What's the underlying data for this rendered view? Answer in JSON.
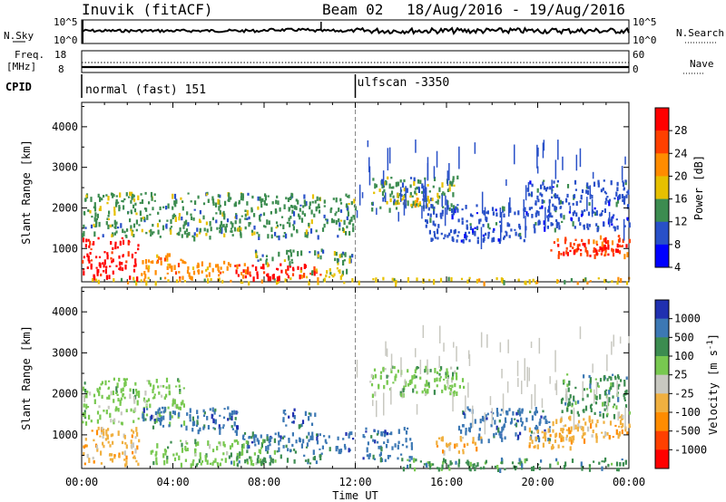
{
  "header": {
    "title": "Inuvik (fitACF)",
    "beam": "Beam 02",
    "date_range": "18/Aug/2016 - 19/Aug/2016"
  },
  "aux_panels": {
    "nsky_label": "N.Sky",
    "nsky_ticks": [
      "10^5",
      "10^0"
    ],
    "nsearch_label": "N.Search",
    "nsearch_ticks": [
      "10^5",
      "10^0"
    ],
    "freq_label": "Freq.",
    "freq_unit": "[MHz]",
    "freq_ticks": [
      "18",
      "8"
    ],
    "nave_label": "Nave",
    "nave_ticks": [
      "60",
      "0"
    ],
    "cpid_label": "CPID",
    "cpid_segments": [
      {
        "label": "normal (fast) 151",
        "start_hour": 0
      },
      {
        "label": "ulfscan -3350",
        "start_hour": 12
      }
    ]
  },
  "chart_data": [
    {
      "type": "heatmap",
      "panel": "power",
      "ylabel": "Slant Range [km]",
      "y_ticks": [
        1000,
        2000,
        3000,
        4000
      ],
      "ylim": [
        180,
        4600
      ],
      "xlim": [
        0,
        24
      ],
      "x_ticks": [
        "00:00",
        "04:00",
        "08:00",
        "12:00",
        "16:00",
        "20:00",
        "00:00"
      ],
      "colorbar_label": "Power [dB]",
      "colorbar_ticks": [
        "28",
        "24",
        "20",
        "16",
        "12",
        "8",
        "4"
      ],
      "colorbar_colors": [
        "#ff0000",
        "#ff4000",
        "#ff8c00",
        "#e6c000",
        "#3c8c50",
        "#2850c8",
        "#0000ff"
      ],
      "regions": [
        {
          "t0": 0,
          "t1": 24,
          "r0": 180,
          "r1": 300,
          "level": 4
        },
        {
          "t0": 0,
          "t1": 2.5,
          "r0": 300,
          "r1": 1300,
          "level": 1
        },
        {
          "t0": 0,
          "t1": 12,
          "r0": 1300,
          "r1": 2400,
          "level": 5
        },
        {
          "t0": 2.5,
          "t1": 4.5,
          "r0": 300,
          "r1": 900,
          "level": 3
        },
        {
          "t0": 4.5,
          "t1": 7.2,
          "r0": 300,
          "r1": 700,
          "level": 3
        },
        {
          "t0": 6.5,
          "t1": 10.5,
          "r0": 300,
          "r1": 650,
          "level": 1
        },
        {
          "t0": 7.5,
          "t1": 12,
          "r0": 650,
          "r1": 1000,
          "level": 5
        },
        {
          "t0": 9.5,
          "t1": 12,
          "r0": 300,
          "r1": 550,
          "level": 4
        },
        {
          "t0": 12.6,
          "t1": 16.5,
          "r0": 2000,
          "r1": 2800,
          "level": 5
        },
        {
          "t0": 13.5,
          "t1": 15.8,
          "r0": 2100,
          "r1": 2400,
          "level": 4
        },
        {
          "t0": 15,
          "t1": 19.5,
          "r0": 1200,
          "r1": 2100,
          "level": 6
        },
        {
          "t0": 19.5,
          "t1": 24,
          "r0": 1500,
          "r1": 2700,
          "level": 6
        },
        {
          "t0": 20.5,
          "t1": 24,
          "r0": 850,
          "r1": 1350,
          "level": 2
        },
        {
          "t0": 21.5,
          "t1": 24,
          "r0": 950,
          "r1": 1150,
          "level": 1
        }
      ]
    },
    {
      "type": "heatmap",
      "panel": "velocity",
      "ylabel": "Slant Range [km]",
      "y_ticks": [
        1000,
        2000,
        3000,
        4000
      ],
      "ylim": [
        180,
        4600
      ],
      "xlim": [
        0,
        24
      ],
      "x_ticks": [
        "00:00",
        "04:00",
        "08:00",
        "12:00",
        "16:00",
        "20:00",
        "00:00"
      ],
      "xlabel": "Time UT",
      "colorbar_label": "Velocity [m s",
      "colorbar_label_sup": "-1",
      "colorbar_label_end": "]",
      "colorbar_ticks": [
        "1000",
        "500",
        "100",
        "25",
        "-25",
        "-100",
        "-500",
        "-1000"
      ],
      "colorbar_colors": [
        "#2030b0",
        "#3c78b4",
        "#3c8c50",
        "#78c850",
        "#c8c8c0",
        "#f0b040",
        "#ff8c00",
        "#ff4000",
        "#ff0000"
      ],
      "regions": [
        {
          "t0": 0,
          "t1": 2.5,
          "r0": 300,
          "r1": 1200,
          "level": 6
        },
        {
          "t0": 0,
          "t1": 4.5,
          "r0": 1300,
          "r1": 2400,
          "level": 4
        },
        {
          "t0": 2.5,
          "t1": 7,
          "r0": 1100,
          "r1": 1700,
          "level": 2
        },
        {
          "t0": 3,
          "t1": 8,
          "r0": 300,
          "r1": 900,
          "level": 4
        },
        {
          "t0": 6.5,
          "t1": 10.5,
          "r0": 300,
          "r1": 650,
          "level": 3
        },
        {
          "t0": 7,
          "t1": 12,
          "r0": 650,
          "r1": 1100,
          "level": 2
        },
        {
          "t0": 8.8,
          "t1": 10.2,
          "r0": 1250,
          "r1": 1650,
          "level": 2
        },
        {
          "t0": 12.6,
          "t1": 16.8,
          "r0": 2000,
          "r1": 2700,
          "level": 4
        },
        {
          "t0": 12.3,
          "t1": 14.5,
          "r0": 400,
          "r1": 1200,
          "level": 2
        },
        {
          "t0": 15.5,
          "t1": 17.5,
          "r0": 600,
          "r1": 1000,
          "level": 6
        },
        {
          "t0": 16.5,
          "t1": 20.5,
          "r0": 900,
          "r1": 1700,
          "level": 2
        },
        {
          "t0": 19.5,
          "t1": 21.5,
          "r0": 700,
          "r1": 1200,
          "level": 6
        },
        {
          "t0": 20.5,
          "t1": 24,
          "r0": 900,
          "r1": 1500,
          "level": 6
        },
        {
          "t0": 21,
          "t1": 24,
          "r0": 1500,
          "r1": 2500,
          "level": 3
        },
        {
          "t0": 14,
          "t1": 24,
          "r0": 180,
          "r1": 450,
          "level": 3
        }
      ]
    }
  ]
}
